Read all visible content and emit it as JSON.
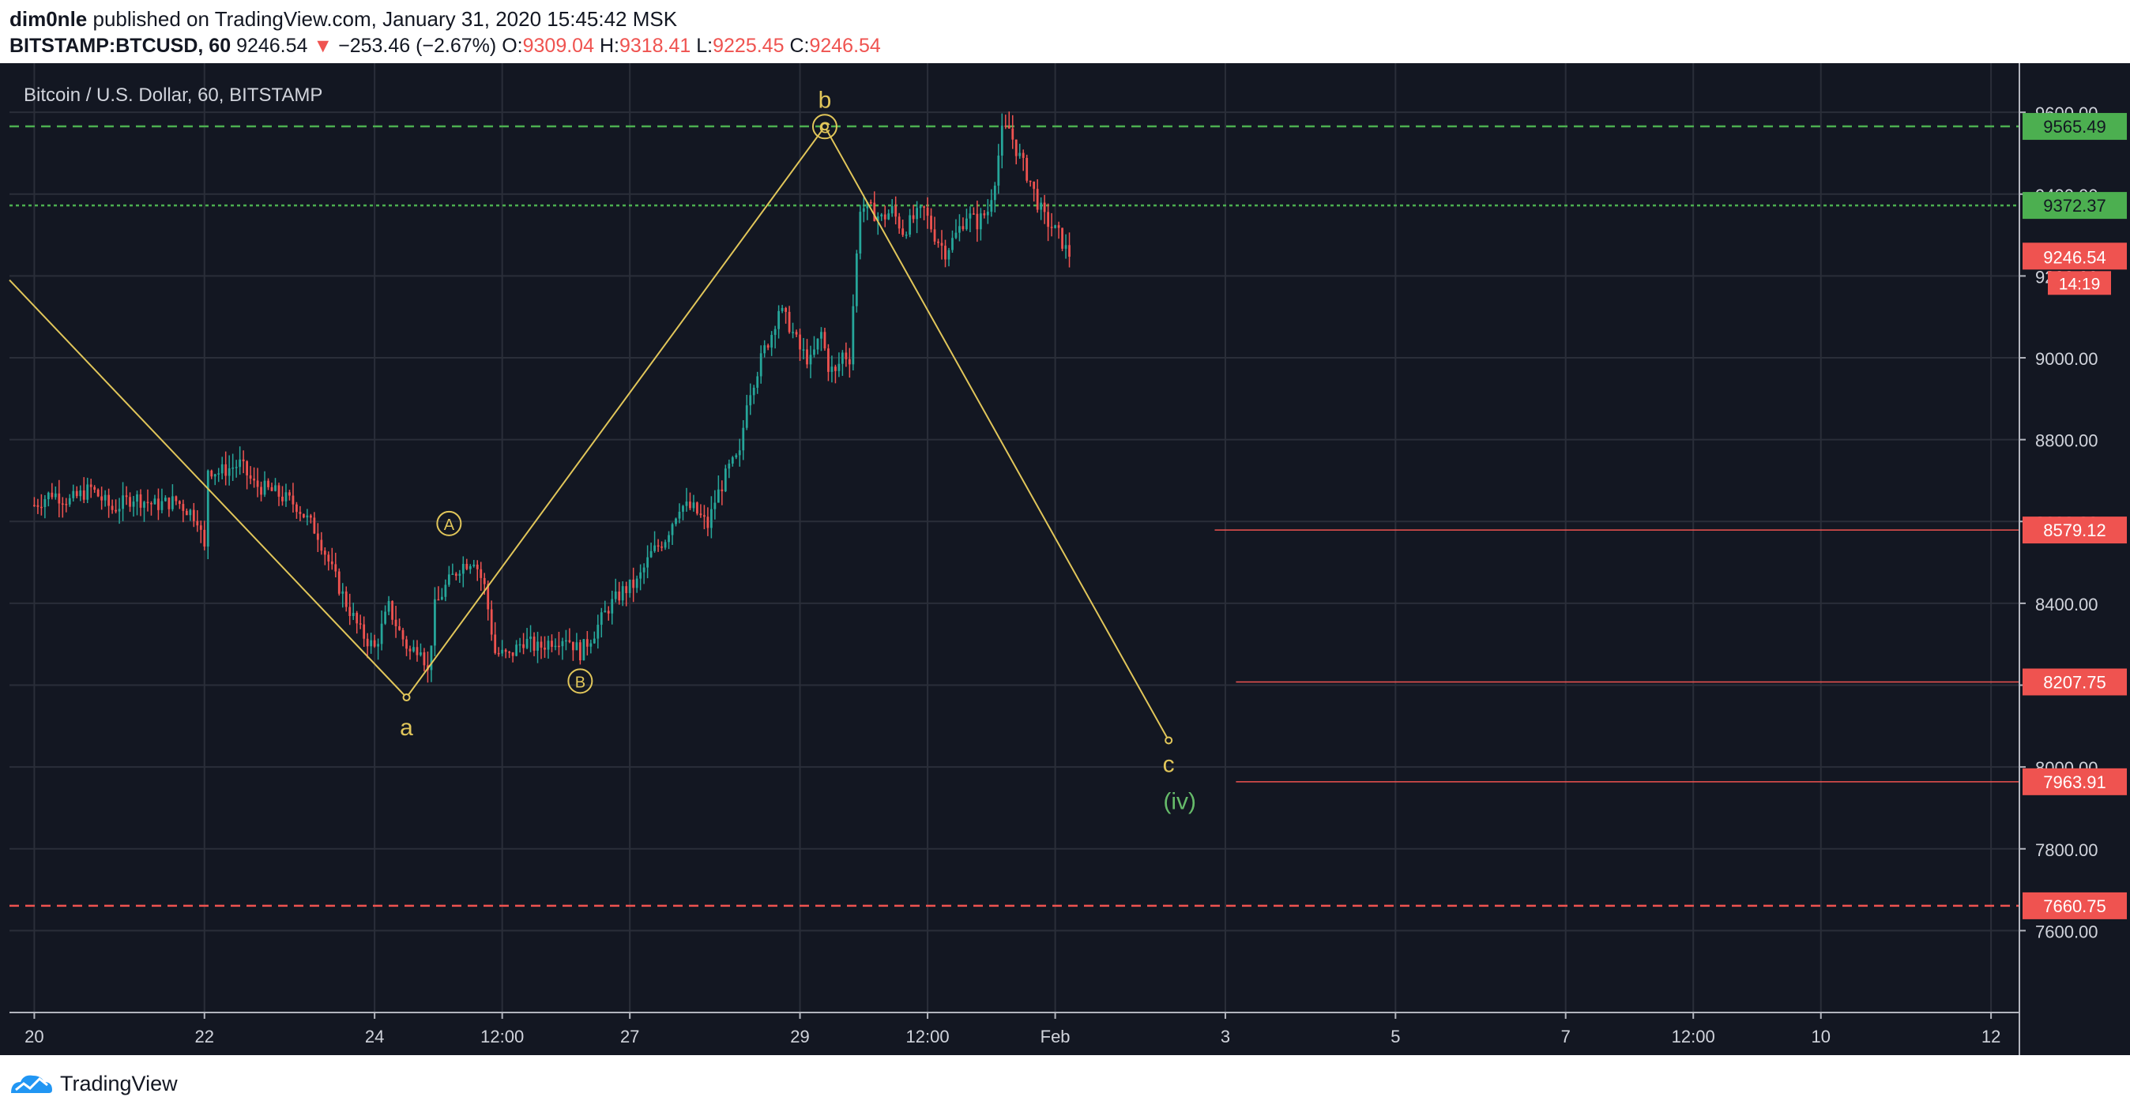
{
  "header": {
    "author": "dim0nle",
    "published_text": "published on TradingView.com, January 31, 2020 15:45:42 MSK",
    "symbol": "BITSTAMP:BTCUSD, 60",
    "last_price": "9246.54",
    "change_arrow": "▼",
    "change": "−253.46 (−2.67%)",
    "open_label": "O:",
    "open": "9309.04",
    "high_label": "H:",
    "high": "9318.41",
    "low_label": "L:",
    "low": "9225.45",
    "close_label": "C:",
    "close": "9246.54"
  },
  "footer": {
    "brand": "TradingView",
    "logo_icon": "tradingview-logo-icon"
  },
  "colors": {
    "background": "#131722",
    "grid": "#2a2e39",
    "up": "#26a69a",
    "down": "#ef5350",
    "wave": "#e1c65a",
    "green_level": "#4caf50",
    "green_label": "#66bb6a"
  },
  "chart_data": {
    "type": "candlestick",
    "title": "Bitcoin / U.S. Dollar, 60, BITSTAMP",
    "ylim": [
      7400,
      9720
    ],
    "xlim": [
      -7,
      560
    ],
    "x_unit": "hours from Jan 20 00:00 (2020)",
    "y_ticks": [
      "7600.00",
      "7800.00",
      "8000.00",
      "8200.00",
      "8400.00",
      "8600.00",
      "8800.00",
      "9000.00",
      "9200.00",
      "9400.00",
      "9600.00"
    ],
    "x_ticks": [
      {
        "x": 0,
        "label": "20"
      },
      {
        "x": 48,
        "label": "22"
      },
      {
        "x": 96,
        "label": "24"
      },
      {
        "x": 132,
        "label": "12:00"
      },
      {
        "x": 168,
        "label": "27"
      },
      {
        "x": 216,
        "label": "29"
      },
      {
        "x": 252,
        "label": "12:00"
      },
      {
        "x": 288,
        "label": "Feb"
      },
      {
        "x": 336,
        "label": "3"
      },
      {
        "x": 384,
        "label": "5"
      },
      {
        "x": 432,
        "label": "7"
      },
      {
        "x": 468,
        "label": "12:00"
      },
      {
        "x": 504,
        "label": "10"
      },
      {
        "x": 552,
        "label": "12"
      }
    ],
    "price_path": [
      [
        0,
        8640
      ],
      [
        5,
        8670
      ],
      [
        10,
        8650
      ],
      [
        16,
        8680
      ],
      [
        22,
        8630
      ],
      [
        28,
        8660
      ],
      [
        34,
        8640
      ],
      [
        40,
        8650
      ],
      [
        46,
        8610
      ],
      [
        48,
        8530
      ],
      [
        49,
        8730
      ],
      [
        52,
        8720
      ],
      [
        58,
        8740
      ],
      [
        62,
        8690
      ],
      [
        68,
        8670
      ],
      [
        74,
        8640
      ],
      [
        80,
        8570
      ],
      [
        84,
        8480
      ],
      [
        88,
        8400
      ],
      [
        92,
        8330
      ],
      [
        96,
        8290
      ],
      [
        100,
        8390
      ],
      [
        103,
        8330
      ],
      [
        106,
        8280
      ],
      [
        109,
        8300
      ],
      [
        111,
        8230
      ],
      [
        113,
        8390
      ],
      [
        116,
        8440
      ],
      [
        120,
        8490
      ],
      [
        124,
        8510
      ],
      [
        127,
        8440
      ],
      [
        130,
        8280
      ],
      [
        134,
        8270
      ],
      [
        138,
        8310
      ],
      [
        142,
        8290
      ],
      [
        146,
        8310
      ],
      [
        150,
        8320
      ],
      [
        154,
        8280
      ],
      [
        158,
        8330
      ],
      [
        162,
        8390
      ],
      [
        166,
        8430
      ],
      [
        170,
        8450
      ],
      [
        174,
        8520
      ],
      [
        178,
        8560
      ],
      [
        182,
        8640
      ],
      [
        186,
        8630
      ],
      [
        190,
        8590
      ],
      [
        192,
        8650
      ],
      [
        196,
        8730
      ],
      [
        199,
        8760
      ],
      [
        201,
        8900
      ],
      [
        204,
        8970
      ],
      [
        206,
        9020
      ],
      [
        208,
        9060
      ],
      [
        210,
        9120
      ],
      [
        213,
        9080
      ],
      [
        216,
        9020
      ],
      [
        219,
        8990
      ],
      [
        222,
        9060
      ],
      [
        224,
        8980
      ],
      [
        226,
        8960
      ],
      [
        228,
        9010
      ],
      [
        230,
        9000
      ],
      [
        231,
        9130
      ],
      [
        233,
        9370
      ],
      [
        236,
        9360
      ],
      [
        239,
        9340
      ],
      [
        242,
        9360
      ],
      [
        245,
        9310
      ],
      [
        248,
        9340
      ],
      [
        251,
        9360
      ],
      [
        254,
        9300
      ],
      [
        257,
        9260
      ],
      [
        260,
        9300
      ],
      [
        263,
        9350
      ],
      [
        266,
        9330
      ],
      [
        269,
        9360
      ],
      [
        271,
        9440
      ],
      [
        273,
        9550
      ],
      [
        275,
        9560
      ],
      [
        277,
        9510
      ],
      [
        279,
        9470
      ],
      [
        281,
        9430
      ],
      [
        283,
        9380
      ],
      [
        285,
        9340
      ],
      [
        287,
        9320
      ],
      [
        289,
        9300
      ],
      [
        292,
        9247
      ]
    ],
    "waves": [
      {
        "label": "",
        "points": [
          [
            -7,
            9190
          ],
          [
            105,
            8170
          ]
        ]
      },
      {
        "label": "a",
        "x": 105,
        "y": 8170
      },
      {
        "label": "b",
        "x": 223,
        "y": 9565
      },
      {
        "label": "c",
        "x": 320,
        "y": 8065
      },
      {
        "label": "(iv)",
        "x": 320,
        "y": 7920
      }
    ],
    "circles": [
      {
        "label": "A",
        "x": 117,
        "y": 8595
      },
      {
        "label": "B",
        "x": 154,
        "y": 8210
      },
      {
        "label": "C",
        "x": 223,
        "y": 9565
      }
    ],
    "levels": [
      {
        "label": "9565.49",
        "value": 9565.49,
        "style": "dashed",
        "color": "#4caf50",
        "x_start": -7
      },
      {
        "label": "9372.37",
        "value": 9372.37,
        "style": "dotted",
        "color": "#4caf50",
        "x_start": -7
      },
      {
        "label": "8579.12",
        "value": 8579.12,
        "style": "solid",
        "color": "#ef5350",
        "x_start": 333
      },
      {
        "label": "8207.75",
        "value": 8207.75,
        "style": "solid",
        "color": "#ef5350",
        "x_start": 339
      },
      {
        "label": "7963.91",
        "value": 7963.91,
        "style": "solid",
        "color": "#ef5350",
        "x_start": 339
      },
      {
        "label": "7660.75",
        "value": 7660.75,
        "style": "dashed",
        "color": "#ef5350",
        "x_start": -7
      }
    ],
    "last_price_label": {
      "value": 9246.54,
      "label": "9246.54",
      "countdown": "14:19"
    }
  }
}
